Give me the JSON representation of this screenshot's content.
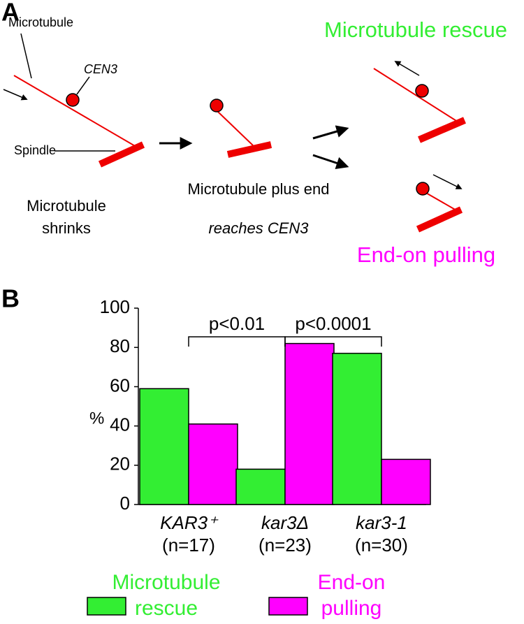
{
  "panel_a": {
    "label": "A",
    "microtubule": "Microtubule",
    "cen3": "CEN3",
    "spindle": "Spindle",
    "step1": "Microtubule shrinks",
    "step2": "Microtubule plus end",
    "step2_cen3": "reaches CEN3",
    "outcome_rescue": "Microtubule rescue",
    "outcome_pulling": "End-on pulling"
  },
  "chart_data": {
    "type": "bar",
    "panel_label": "B",
    "ylabel": "%",
    "categories": [
      "KAR3⁺",
      "kar3Δ",
      "kar3-1"
    ],
    "category_notes": [
      "(n=17)",
      "(n=23)",
      "(n=30)"
    ],
    "series": [
      {
        "name": "Microtubule rescue",
        "color": "#33ee33",
        "values": [
          59,
          18,
          77
        ]
      },
      {
        "name": "End-on pulling",
        "color": "#ff00ff",
        "values": [
          41,
          82,
          23
        ]
      }
    ],
    "ylim": [
      0,
      100
    ],
    "yticks": [
      0,
      20,
      40,
      60,
      80,
      100
    ],
    "annotations": [
      "p<0.01",
      "p<0.0001"
    ]
  }
}
